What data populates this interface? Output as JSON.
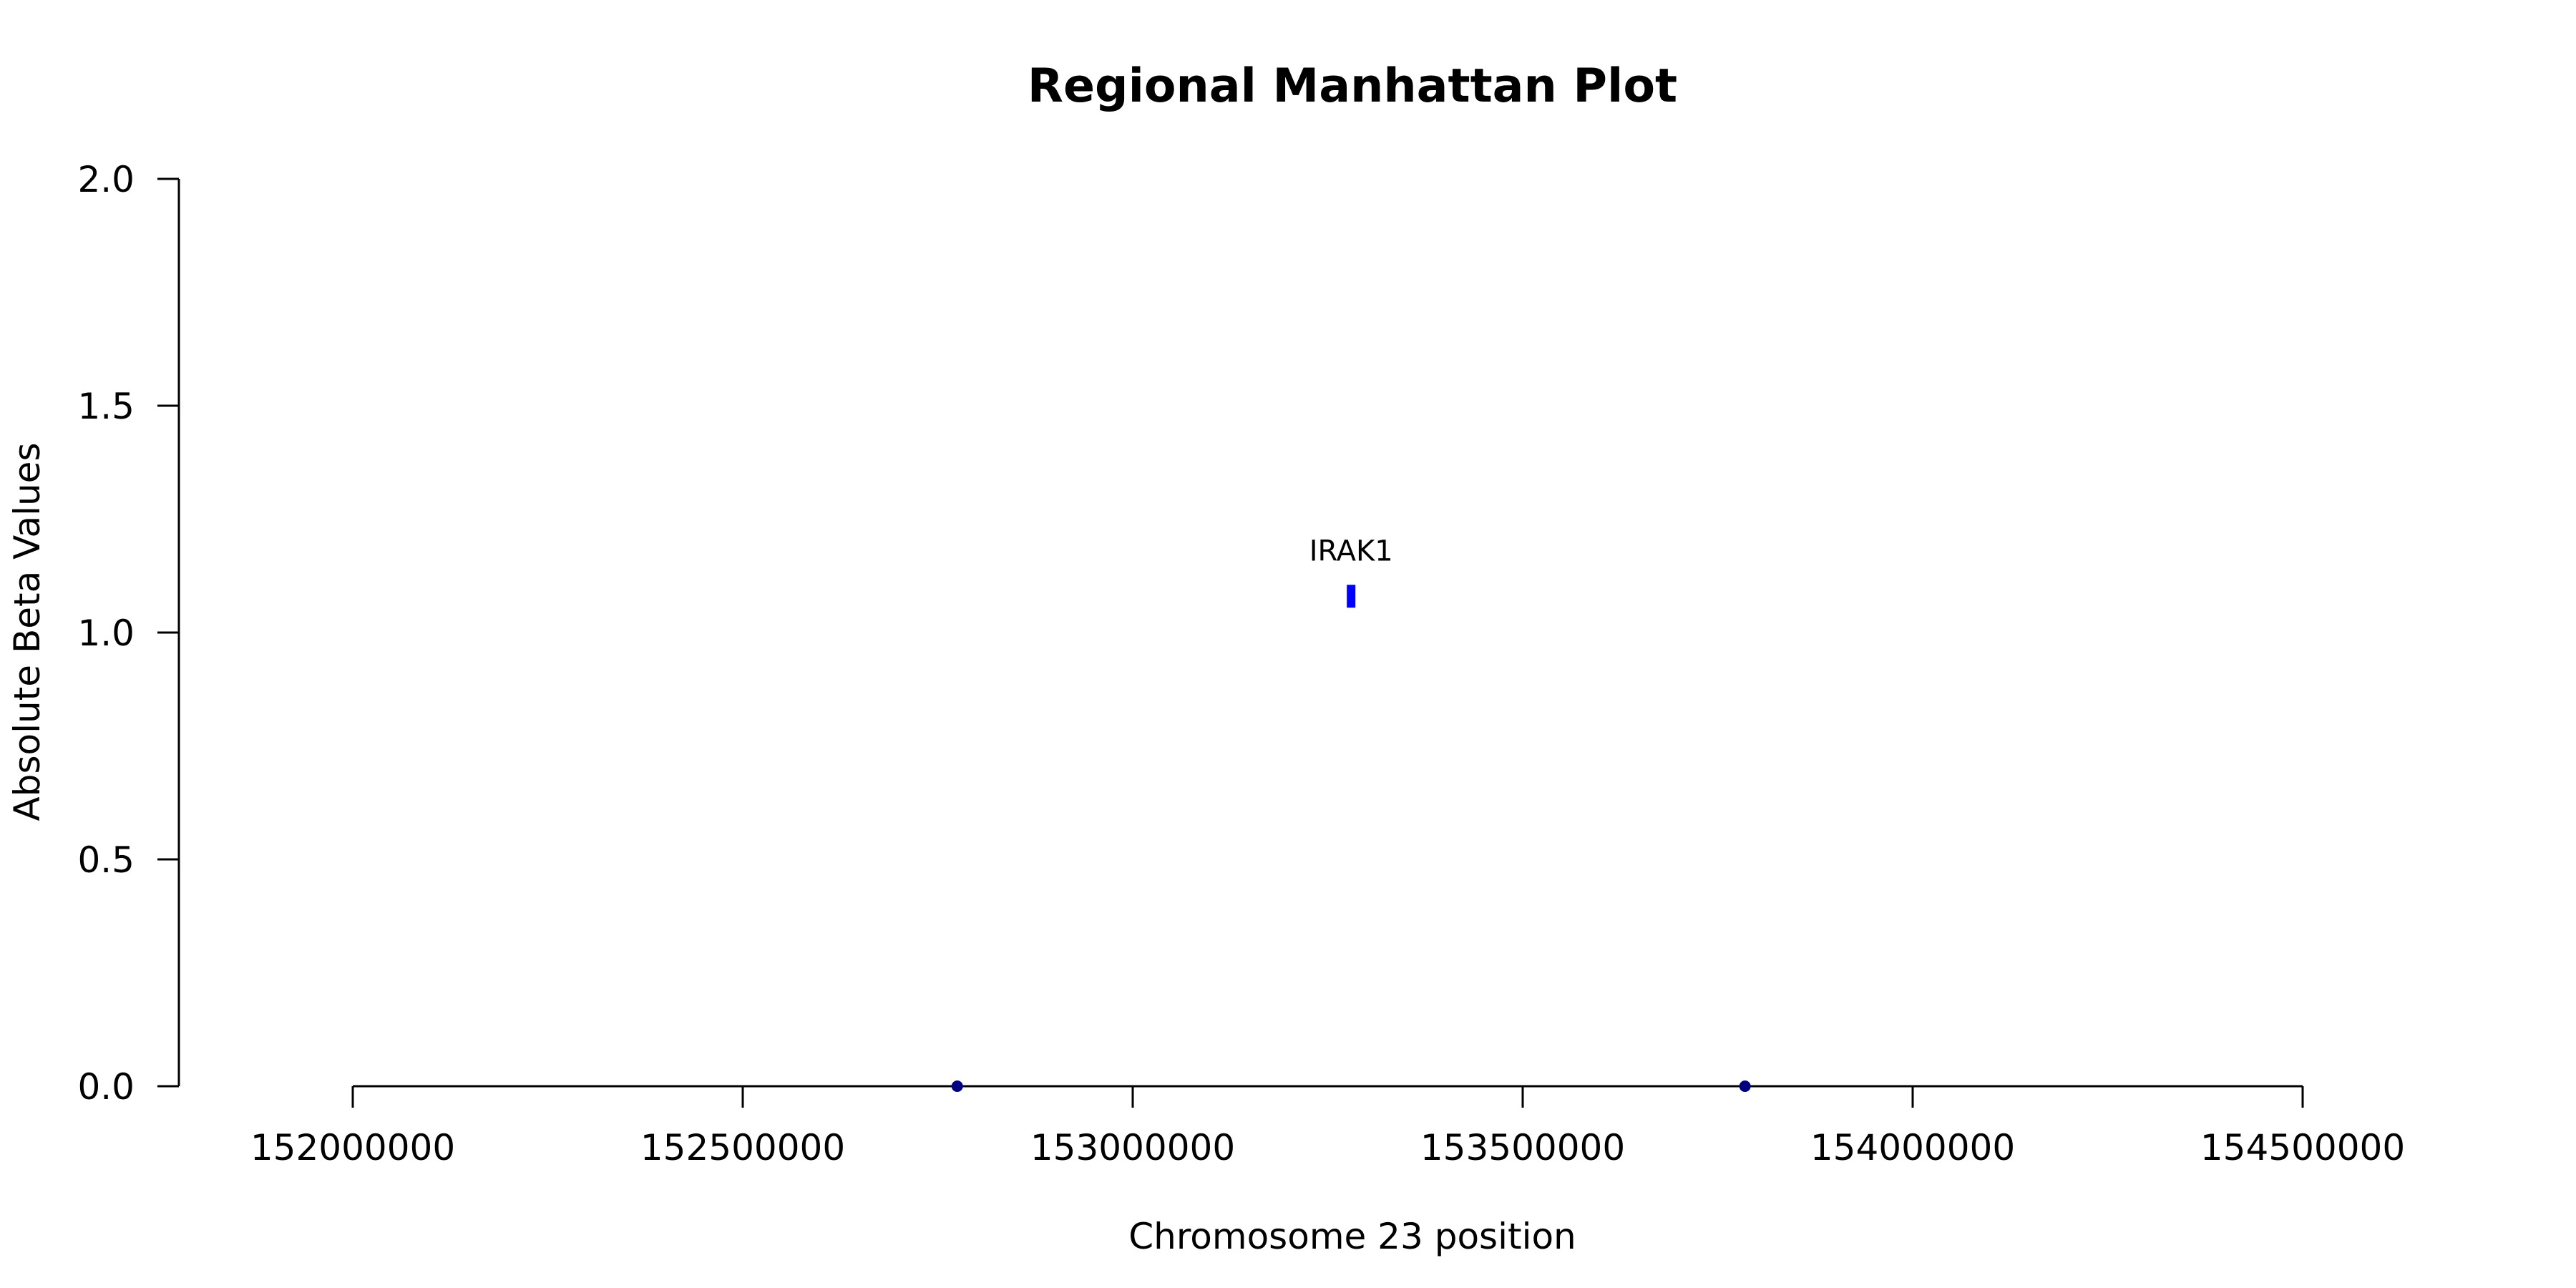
{
  "chart_data": {
    "type": "scatter",
    "title": "Regional Manhattan Plot",
    "xlabel": "Chromosome 23 position",
    "ylabel": "Absolute Beta Values",
    "xlim": [
      152000000,
      154500000
    ],
    "ylim": [
      0,
      2
    ],
    "x_ticks": [
      "152000000",
      "152500000",
      "153000000",
      "153500000",
      "154000000",
      "154500000"
    ],
    "y_ticks": [
      "0.0",
      "0.5",
      "1.0",
      "1.5",
      "2.0"
    ],
    "grid": false,
    "series": [
      {
        "marker": "circle",
        "color": "#000080",
        "points": [
          {
            "x": 152775000,
            "y": 0.0
          },
          {
            "x": 153785000,
            "y": 0.0
          }
        ]
      },
      {
        "marker": "bar",
        "color": "#0000ff",
        "points": [
          {
            "x": 153280000,
            "y": 1.08,
            "label": "IRAK1"
          }
        ]
      }
    ]
  }
}
